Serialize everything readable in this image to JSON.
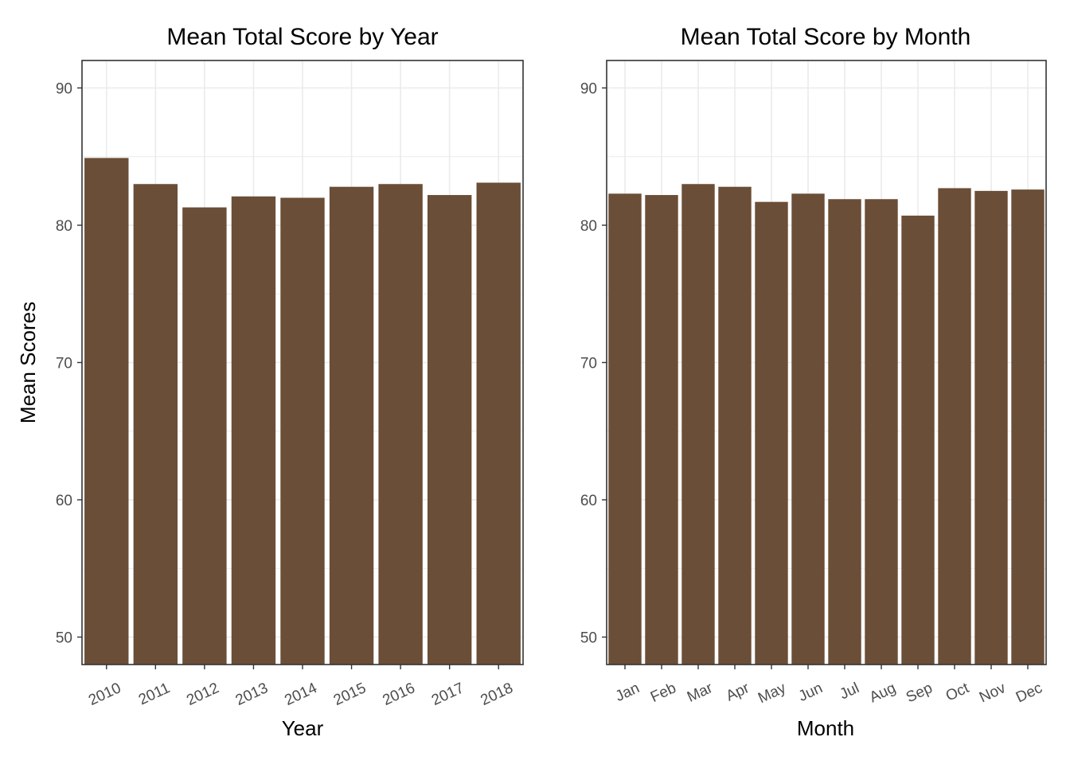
{
  "colors": {
    "bar": "#6b4e37",
    "grid": "#ebebeb",
    "frame": "#333333",
    "tick_text": "#4d4d4d",
    "background": "#ffffff"
  },
  "chart_data": [
    {
      "type": "bar",
      "title": "Mean Total Score by Year",
      "xlabel": "Year",
      "ylabel": "Mean Scores",
      "ylim": [
        48,
        92
      ],
      "yticks": [
        50,
        60,
        70,
        80,
        90
      ],
      "ytick_labels": [
        "50",
        "60",
        "70",
        "80",
        "90"
      ],
      "grid": true,
      "x_tick_rotation_deg": 25,
      "categories": [
        "2010",
        "2011",
        "2012",
        "2013",
        "2014",
        "2015",
        "2016",
        "2017",
        "2018"
      ],
      "values": [
        84.9,
        83.0,
        81.3,
        82.1,
        82.0,
        82.8,
        83.0,
        82.2,
        83.1
      ]
    },
    {
      "type": "bar",
      "title": "Mean Total Score by Month",
      "xlabel": "Month",
      "ylabel": "",
      "ylim": [
        48,
        92
      ],
      "yticks": [
        50,
        60,
        70,
        80,
        90
      ],
      "ytick_labels": [
        "50",
        "60",
        "70",
        "80",
        "90"
      ],
      "grid": true,
      "x_tick_rotation_deg": 25,
      "categories": [
        "Jan",
        "Feb",
        "Mar",
        "Apr",
        "May",
        "Jun",
        "Jul",
        "Aug",
        "Sep",
        "Oct",
        "Nov",
        "Dec"
      ],
      "values": [
        82.3,
        82.2,
        83.0,
        82.8,
        81.7,
        82.3,
        81.9,
        81.9,
        80.7,
        82.7,
        82.5,
        82.6
      ]
    }
  ]
}
